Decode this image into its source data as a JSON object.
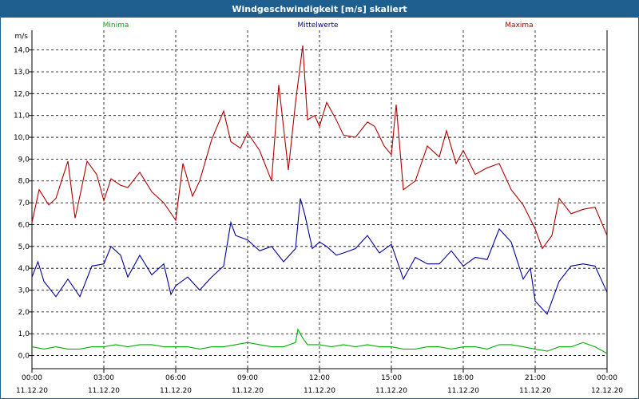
{
  "window": {
    "title": "Windgeschwindigkeit [m/s] skaliert"
  },
  "chart_data": {
    "type": "line",
    "title": "Windgeschwindigkeit [m/s] skaliert",
    "ylabel": "m/s",
    "xlabel": "",
    "ylim": [
      -0.6,
      14.9
    ],
    "xlim": [
      0,
      24
    ],
    "yticks": [
      "0,0",
      "1,0",
      "2,0",
      "3,0",
      "4,0",
      "5,0",
      "6,0",
      "7,0",
      "8,0",
      "9,0",
      "10,0",
      "11,0",
      "12,0",
      "13,0",
      "14,0"
    ],
    "xticks": [
      {
        "time": "00:00",
        "date": "11.12.20"
      },
      {
        "time": "03:00",
        "date": "11.12.20"
      },
      {
        "time": "06:00",
        "date": "11.12.20"
      },
      {
        "time": "09:00",
        "date": "11.12.20"
      },
      {
        "time": "12:00",
        "date": "11.12.20"
      },
      {
        "time": "15:00",
        "date": "11.12.20"
      },
      {
        "time": "18:00",
        "date": "11.12.20"
      },
      {
        "time": "21:00",
        "date": "11.12.20"
      },
      {
        "time": "00:00",
        "date": "12.12.20"
      }
    ],
    "grid": true,
    "legend": "top",
    "series": [
      {
        "name": "Minima",
        "color": "#00b000",
        "x": [
          0,
          0.5,
          1,
          1.5,
          2,
          2.5,
          3,
          3.5,
          4,
          4.5,
          5,
          5.5,
          6,
          6.5,
          7,
          7.5,
          8,
          8.5,
          9,
          9.5,
          10,
          10.5,
          11,
          11.1,
          11.3,
          11.5,
          12,
          12.5,
          13,
          13.5,
          14,
          14.5,
          15,
          15.5,
          16,
          16.5,
          17,
          17.5,
          18,
          18.5,
          19,
          19.5,
          20,
          20.5,
          21,
          21.5,
          22,
          22.5,
          23,
          23.5,
          24
        ],
        "values": [
          0.4,
          0.3,
          0.4,
          0.3,
          0.3,
          0.4,
          0.4,
          0.5,
          0.4,
          0.5,
          0.5,
          0.4,
          0.4,
          0.4,
          0.3,
          0.4,
          0.4,
          0.5,
          0.6,
          0.5,
          0.4,
          0.4,
          0.6,
          1.2,
          0.8,
          0.5,
          0.5,
          0.4,
          0.5,
          0.4,
          0.5,
          0.4,
          0.4,
          0.3,
          0.3,
          0.4,
          0.4,
          0.3,
          0.4,
          0.4,
          0.3,
          0.5,
          0.5,
          0.4,
          0.3,
          0.2,
          0.4,
          0.4,
          0.6,
          0.4,
          0.1
        ]
      },
      {
        "name": "Mittelwerte",
        "color": "#00009e",
        "x": [
          0,
          0.25,
          0.5,
          1,
          1.5,
          2,
          2.5,
          3,
          3.3,
          3.7,
          4,
          4.5,
          5,
          5.5,
          5.8,
          6,
          6.5,
          7,
          7.5,
          7.8,
          8,
          8.3,
          8.5,
          9,
          9.5,
          10,
          10.5,
          11,
          11.2,
          11.4,
          11.7,
          12,
          12.3,
          12.7,
          13,
          13.5,
          14,
          14.5,
          15,
          15.5,
          16,
          16.5,
          17,
          17.5,
          18,
          18.5,
          19,
          19.5,
          20,
          20.5,
          20.8,
          21,
          21.5,
          22,
          22.5,
          23,
          23.5,
          24
        ],
        "values": [
          3.6,
          4.3,
          3.4,
          2.7,
          3.5,
          2.7,
          4.1,
          4.2,
          5.0,
          4.6,
          3.6,
          4.6,
          3.7,
          4.2,
          2.8,
          3.2,
          3.6,
          3.0,
          3.6,
          3.9,
          4.1,
          6.1,
          5.5,
          5.3,
          4.8,
          5.0,
          4.3,
          4.9,
          7.2,
          6.4,
          4.9,
          5.2,
          5.0,
          4.6,
          4.7,
          4.9,
          5.5,
          4.7,
          5.1,
          3.5,
          4.5,
          4.2,
          4.2,
          4.8,
          4.1,
          4.5,
          4.4,
          5.8,
          5.2,
          3.5,
          4.0,
          2.5,
          1.9,
          3.4,
          4.1,
          4.2,
          4.1,
          2.9
        ]
      },
      {
        "name": "Maxima",
        "color": "#b00000",
        "x": [
          0,
          0.3,
          0.7,
          1,
          1.5,
          1.8,
          2,
          2.3,
          2.7,
          3,
          3.3,
          3.7,
          4,
          4.5,
          5,
          5.5,
          6,
          6.3,
          6.7,
          7,
          7.5,
          8,
          8.3,
          8.7,
          9,
          9.5,
          10,
          10.3,
          10.7,
          11,
          11.3,
          11.5,
          11.8,
          12,
          12.3,
          12.7,
          13,
          13.5,
          14,
          14.3,
          14.7,
          15,
          15.2,
          15.5,
          16,
          16.5,
          17,
          17.3,
          17.7,
          18,
          18.5,
          19,
          19.5,
          20,
          20.5,
          21,
          21.3,
          21.7,
          22,
          22.5,
          23,
          23.5,
          24
        ],
        "values": [
          6.1,
          7.6,
          6.9,
          7.2,
          8.9,
          6.3,
          7.3,
          8.9,
          8.3,
          7.1,
          8.1,
          7.8,
          7.7,
          8.4,
          7.5,
          7.0,
          6.2,
          8.8,
          7.3,
          8.0,
          9.9,
          11.2,
          9.8,
          9.5,
          10.2,
          9.4,
          8.0,
          12.4,
          8.5,
          11.6,
          14.2,
          10.8,
          11.0,
          10.5,
          11.6,
          10.8,
          10.1,
          10.0,
          10.7,
          10.5,
          9.6,
          9.2,
          11.5,
          7.6,
          8.0,
          9.6,
          9.1,
          10.3,
          8.8,
          9.4,
          8.3,
          8.6,
          8.8,
          7.6,
          6.9,
          5.8,
          4.9,
          5.5,
          7.2,
          6.5,
          6.7,
          6.8,
          5.5
        ]
      }
    ]
  }
}
